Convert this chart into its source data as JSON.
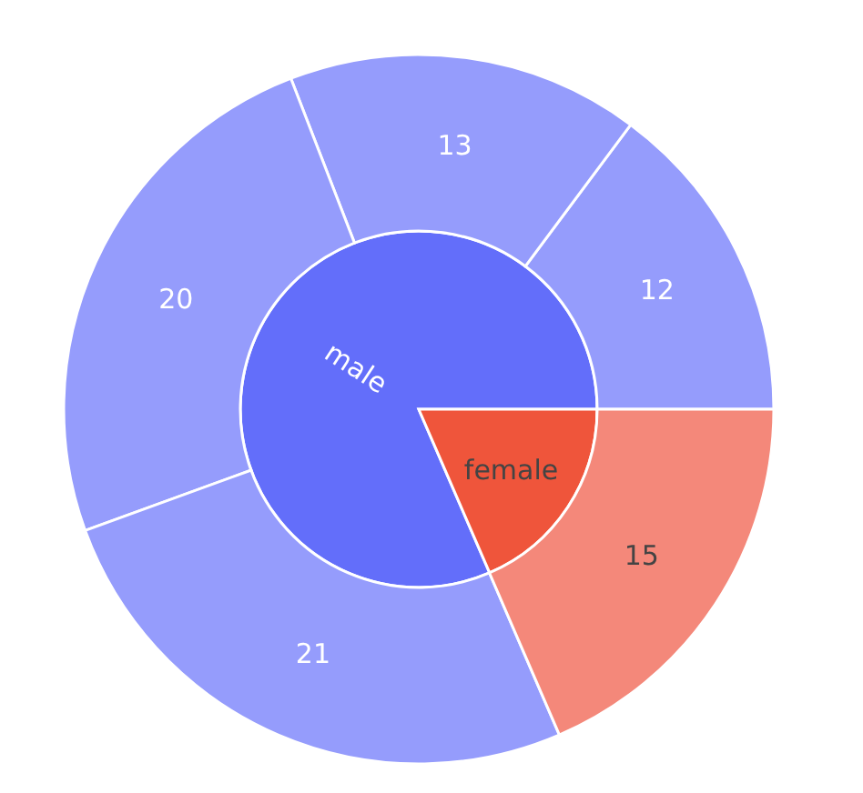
{
  "chart_data": [
    {
      "type": "pie",
      "categories": [
        "male",
        "female"
      ],
      "values": [
        81.5,
        18.5
      ],
      "colors": [
        "#636efa",
        "#ef553b"
      ]
    },
    {
      "type": "donut",
      "categories": [
        null,
        null,
        null,
        null,
        null
      ],
      "values": [
        12,
        13,
        20,
        21,
        15
      ],
      "data_labels": true,
      "colors": [
        "#959cfc",
        "#959cfc",
        "#959cfc",
        "#959cfc",
        "#f4887a"
      ]
    }
  ]
}
